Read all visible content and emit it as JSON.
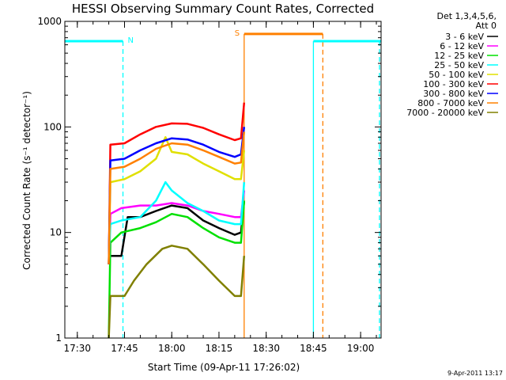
{
  "chart_data": {
    "type": "line",
    "title": "HESSI Observing Summary Count Rates, Corrected",
    "xlabel": "Start Time (09-Apr-11 17:26:02)",
    "ylabel": "Corrected Count Rate (s⁻¹ detector⁻¹)",
    "yscale": "log",
    "xlim": [
      "17:26:02",
      "19:06:30"
    ],
    "ylim": [
      1,
      1000
    ],
    "x_ticks": [
      "17:30",
      "17:45",
      "18:00",
      "18:15",
      "18:30",
      "18:45",
      "19:00"
    ],
    "y_ticks": [
      "1",
      "10",
      "100",
      "1000"
    ],
    "legend_header": [
      "Det 1,3,4,5,6,",
      "Att 0"
    ],
    "legend_position": "right",
    "footer": "9-Apr-2011 13:17",
    "series": [
      {
        "name": "3 - 6 keV",
        "color": "#000000",
        "points": [
          [
            "17:40:00",
            5.0
          ],
          [
            "17:40:30",
            6.0
          ],
          [
            "17:44:00",
            6.0
          ],
          [
            "17:46:00",
            14.0
          ],
          [
            "17:50:00",
            14.0
          ],
          [
            "17:55:00",
            16.0
          ],
          [
            "18:00:00",
            18.0
          ],
          [
            "18:05:00",
            17.0
          ],
          [
            "18:10:00",
            13.0
          ],
          [
            "18:15:00",
            11.0
          ],
          [
            "18:20:00",
            9.5
          ],
          [
            "18:22:00",
            10.0
          ],
          [
            "18:23:00",
            20.0
          ]
        ]
      },
      {
        "name": "6 - 12 keV",
        "color": "#ff00ff",
        "points": [
          [
            "17:40:00",
            5.0
          ],
          [
            "17:40:30",
            15.0
          ],
          [
            "17:44:00",
            17.0
          ],
          [
            "17:50:00",
            18.0
          ],
          [
            "17:55:00",
            18.0
          ],
          [
            "18:00:00",
            19.0
          ],
          [
            "18:05:00",
            18.0
          ],
          [
            "18:10:00",
            16.0
          ],
          [
            "18:15:00",
            15.0
          ],
          [
            "18:20:00",
            14.0
          ],
          [
            "18:22:00",
            14.0
          ],
          [
            "18:23:00",
            25.0
          ]
        ]
      },
      {
        "name": "12 - 25 keV",
        "color": "#00e000",
        "points": [
          [
            "17:40:00",
            1.0
          ],
          [
            "17:40:30",
            8.0
          ],
          [
            "17:44:00",
            10.0
          ],
          [
            "17:50:00",
            11.0
          ],
          [
            "17:55:00",
            12.5
          ],
          [
            "18:00:00",
            15.0
          ],
          [
            "18:05:00",
            14.0
          ],
          [
            "18:10:00",
            11.0
          ],
          [
            "18:15:00",
            9.0
          ],
          [
            "18:20:00",
            8.0
          ],
          [
            "18:22:00",
            8.0
          ],
          [
            "18:23:00",
            20.0
          ]
        ]
      },
      {
        "name": "25 - 50 keV",
        "color": "#00ffff",
        "points": [
          [
            "17:40:00",
            5.0
          ],
          [
            "17:40:30",
            12.0
          ],
          [
            "17:44:00",
            13.0
          ],
          [
            "17:50:00",
            14.0
          ],
          [
            "17:55:00",
            20.0
          ],
          [
            "17:58:00",
            30.0
          ],
          [
            "18:00:00",
            25.0
          ],
          [
            "18:05:00",
            19.0
          ],
          [
            "18:10:00",
            16.0
          ],
          [
            "18:15:00",
            13.0
          ],
          [
            "18:20:00",
            12.0
          ],
          [
            "18:22:00",
            12.0
          ],
          [
            "18:23:00",
            30.0
          ]
        ]
      },
      {
        "name": "50 - 100 keV",
        "color": "#e0e000",
        "points": [
          [
            "17:40:00",
            5.0
          ],
          [
            "17:40:30",
            30.0
          ],
          [
            "17:45:00",
            32.0
          ],
          [
            "17:50:00",
            38.0
          ],
          [
            "17:55:00",
            50.0
          ],
          [
            "17:58:00",
            80.0
          ],
          [
            "18:00:00",
            58.0
          ],
          [
            "18:05:00",
            55.0
          ],
          [
            "18:10:00",
            45.0
          ],
          [
            "18:15:00",
            38.0
          ],
          [
            "18:20:00",
            32.0
          ],
          [
            "18:22:00",
            32.0
          ],
          [
            "18:23:00",
            60.0
          ]
        ]
      },
      {
        "name": "100 - 300 keV",
        "color": "#ff0000",
        "points": [
          [
            "17:40:00",
            5.0
          ],
          [
            "17:40:30",
            68.0
          ],
          [
            "17:45:00",
            70.0
          ],
          [
            "17:50:00",
            85.0
          ],
          [
            "17:55:00",
            100.0
          ],
          [
            "18:00:00",
            108.0
          ],
          [
            "18:05:00",
            107.0
          ],
          [
            "18:10:00",
            98.0
          ],
          [
            "18:15:00",
            85.0
          ],
          [
            "18:20:00",
            75.0
          ],
          [
            "18:22:00",
            78.0
          ],
          [
            "18:23:00",
            170.0
          ]
        ]
      },
      {
        "name": "300 - 800 keV",
        "color": "#0000ff",
        "points": [
          [
            "17:40:00",
            5.0
          ],
          [
            "17:40:30",
            48.0
          ],
          [
            "17:45:00",
            50.0
          ],
          [
            "17:50:00",
            60.0
          ],
          [
            "17:55:00",
            70.0
          ],
          [
            "18:00:00",
            78.0
          ],
          [
            "18:05:00",
            76.0
          ],
          [
            "18:10:00",
            68.0
          ],
          [
            "18:15:00",
            58.0
          ],
          [
            "18:20:00",
            52.0
          ],
          [
            "18:22:00",
            55.0
          ],
          [
            "18:23:00",
            100.0
          ]
        ]
      },
      {
        "name": "800 - 7000 keV",
        "color": "#ff8000",
        "points": [
          [
            "17:40:00",
            5.0
          ],
          [
            "17:40:30",
            40.0
          ],
          [
            "17:45:00",
            42.0
          ],
          [
            "17:50:00",
            50.0
          ],
          [
            "17:55:00",
            62.0
          ],
          [
            "18:00:00",
            70.0
          ],
          [
            "18:05:00",
            68.0
          ],
          [
            "18:10:00",
            60.0
          ],
          [
            "18:15:00",
            52.0
          ],
          [
            "18:20:00",
            45.0
          ],
          [
            "18:22:00",
            46.0
          ],
          [
            "18:23:00",
            90.0
          ]
        ]
      },
      {
        "name": "7000 - 20000 keV",
        "color": "#808000",
        "points": [
          [
            "17:40:00",
            1.0
          ],
          [
            "17:40:30",
            2.5
          ],
          [
            "17:45:00",
            2.5
          ],
          [
            "17:48:00",
            3.5
          ],
          [
            "17:52:00",
            5.0
          ],
          [
            "17:57:00",
            7.0
          ],
          [
            "18:00:00",
            7.5
          ],
          [
            "18:05:00",
            7.0
          ],
          [
            "18:10:00",
            5.0
          ],
          [
            "18:15:00",
            3.5
          ],
          [
            "18:20:00",
            2.5
          ],
          [
            "18:22:00",
            2.5
          ],
          [
            "18:23:00",
            6.0
          ]
        ]
      }
    ],
    "orbit_markers": [
      {
        "label": "N",
        "color": "#00ffff",
        "start": "17:26:02",
        "end": "17:44:30",
        "level": 650
      },
      {
        "label": "S",
        "color": "#ff8000",
        "start": "18:23:00",
        "end": "18:48:00",
        "level": 760
      },
      {
        "label": "",
        "color": "#00ffff",
        "start": "18:45:00",
        "end": "19:06:30",
        "level": 650
      }
    ]
  }
}
